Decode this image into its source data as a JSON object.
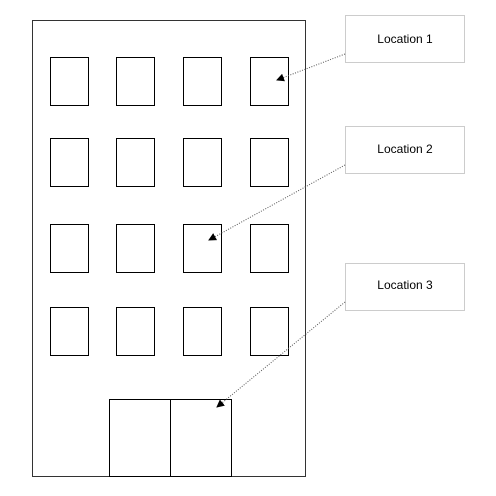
{
  "diagram": {
    "callouts": [
      {
        "label": "Location 1"
      },
      {
        "label": "Location 2"
      },
      {
        "label": "Location 3"
      }
    ]
  }
}
